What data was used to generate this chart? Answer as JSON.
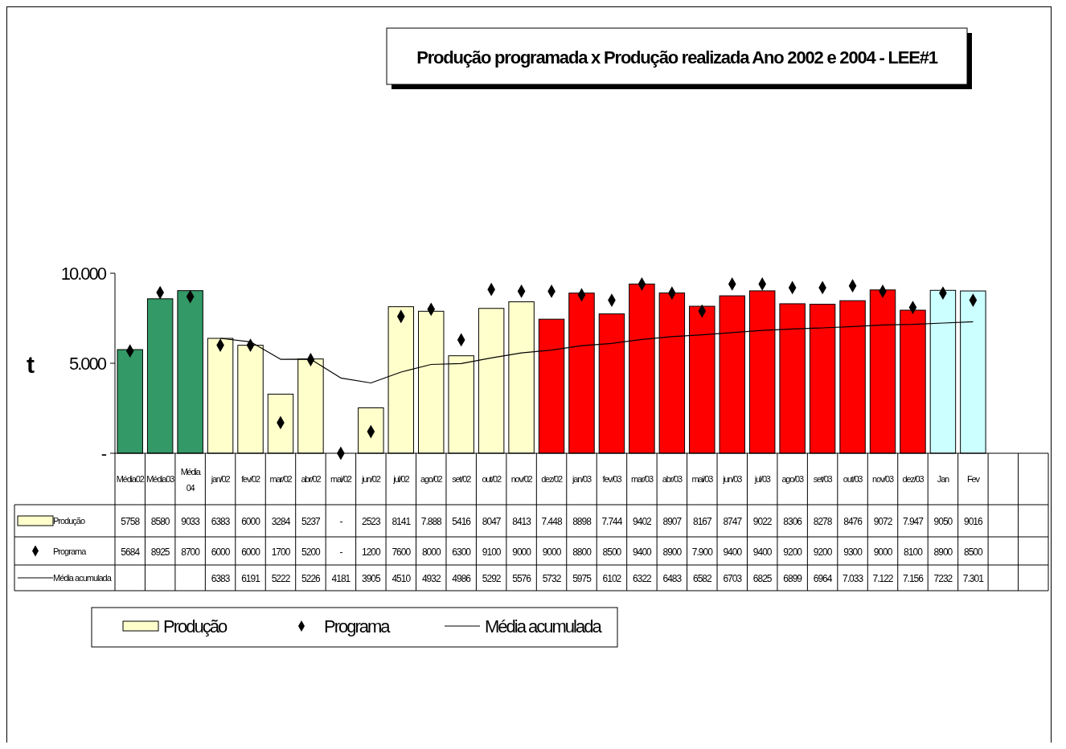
{
  "chart_data": {
    "type": "bar",
    "title": "Produção programada x Produção realizada Ano 2002 e 2004 - LEE#1",
    "ylabel": "t",
    "categories": [
      "Média02",
      "Média03",
      "Média 04",
      "jan/02",
      "fev/02",
      "mar/02",
      "abr/02",
      "mai/02",
      "jun/02",
      "jul/02",
      "ago/02",
      "set/02",
      "out/02",
      "nov/02",
      "dez/02",
      "jan/03",
      "fev/03",
      "mar/03",
      "abr/03",
      "mai/03",
      "jun/03",
      "jul/03",
      "ago/03",
      "set/03",
      "out/03",
      "nov/03",
      "dez/03",
      "Jan",
      "Fev",
      null,
      null
    ],
    "series": [
      {
        "name": "Produção",
        "color": "#ffffcc",
        "colors": [
          "#339966",
          "#339966",
          "#339966",
          "#ffffcc",
          "#ffffcc",
          "#ffffcc",
          "#ffffcc",
          "#ffffcc",
          "#ffffcc",
          "#ffffcc",
          "#ffffcc",
          "#ffffcc",
          "#ffffcc",
          "#ffffcc",
          "#ff0000",
          "#ff0000",
          "#ff0000",
          "#ff0000",
          "#ff0000",
          "#ff0000",
          "#ff0000",
          "#ff0000",
          "#ff0000",
          "#ff0000",
          "#ff0000",
          "#ff0000",
          "#ff0000",
          "#ccffff",
          "#ccffff",
          null,
          null
        ],
        "values": [
          5758,
          8580,
          9033,
          6383,
          6000,
          3284,
          5237,
          0,
          2523,
          8141,
          7888,
          5416,
          8047,
          8413,
          7448,
          8898,
          7744,
          9402,
          8907,
          8167,
          8747,
          9022,
          8306,
          8278,
          8476,
          9072,
          7947,
          9050,
          9016,
          null,
          null
        ],
        "value_labels": [
          "5758",
          "8580",
          "9033",
          "6383",
          "6000",
          "3284",
          "5237",
          "-",
          "2523",
          "8141",
          "7.888",
          "5416",
          "8047",
          "8413",
          "7.448",
          "8898",
          "7.744",
          "9402",
          "8907",
          "8167",
          "8747",
          "9022",
          "8306",
          "8278",
          "8476",
          "9072",
          "7.947",
          "9050",
          "9016",
          null,
          null
        ]
      },
      {
        "name": "Programa",
        "type": "scatter",
        "marker": "diamond",
        "color": "#000000",
        "values": [
          5684,
          8925,
          8700,
          6000,
          6000,
          1700,
          5200,
          0,
          1200,
          7600,
          8000,
          6300,
          9100,
          9000,
          9000,
          8800,
          8500,
          9400,
          8900,
          7900,
          9400,
          9400,
          9200,
          9200,
          9300,
          9000,
          8100,
          8900,
          8500,
          null,
          null
        ],
        "value_labels": [
          "5684",
          "8925",
          "8700",
          "6000",
          "6000",
          "1700",
          "5200",
          "-",
          "1200",
          "7600",
          "8000",
          "6300",
          "9100",
          "9000",
          "9000",
          "8800",
          "8500",
          "9400",
          "8900",
          "7.900",
          "9400",
          "9400",
          "9200",
          "9200",
          "9300",
          "9000",
          "8100",
          "8900",
          "8500",
          null,
          null
        ]
      },
      {
        "name": "Média acumulada",
        "type": "line",
        "color": "#000000",
        "values": [
          null,
          null,
          null,
          6383,
          6191,
          5222,
          5226,
          4181,
          3905,
          4510,
          4932,
          4986,
          5292,
          5576,
          5732,
          5975,
          6102,
          6322,
          6483,
          6582,
          6703,
          6825,
          6899,
          6964,
          7033,
          7122,
          7156,
          7232,
          7301,
          null,
          null
        ],
        "value_labels": [
          null,
          null,
          null,
          "6383",
          "6191",
          "5222",
          "5226",
          "4181",
          "3905",
          "4510",
          "4932",
          "4986",
          "5292",
          "5576",
          "5732",
          "5975",
          "6102",
          "6322",
          "6483",
          "6582",
          "6703",
          "6825",
          "6899",
          "6964",
          "7.033",
          "7.122",
          "7.156",
          "7232",
          "7.301",
          null,
          null
        ]
      }
    ],
    "ylim": [
      0,
      10000
    ],
    "yticks": [
      {
        "value": 0,
        "label": "-"
      },
      {
        "value": 5000,
        "label": "5.000"
      },
      {
        "value": 10000,
        "label": "10.000"
      }
    ],
    "grid": false,
    "legend": "bottom"
  }
}
